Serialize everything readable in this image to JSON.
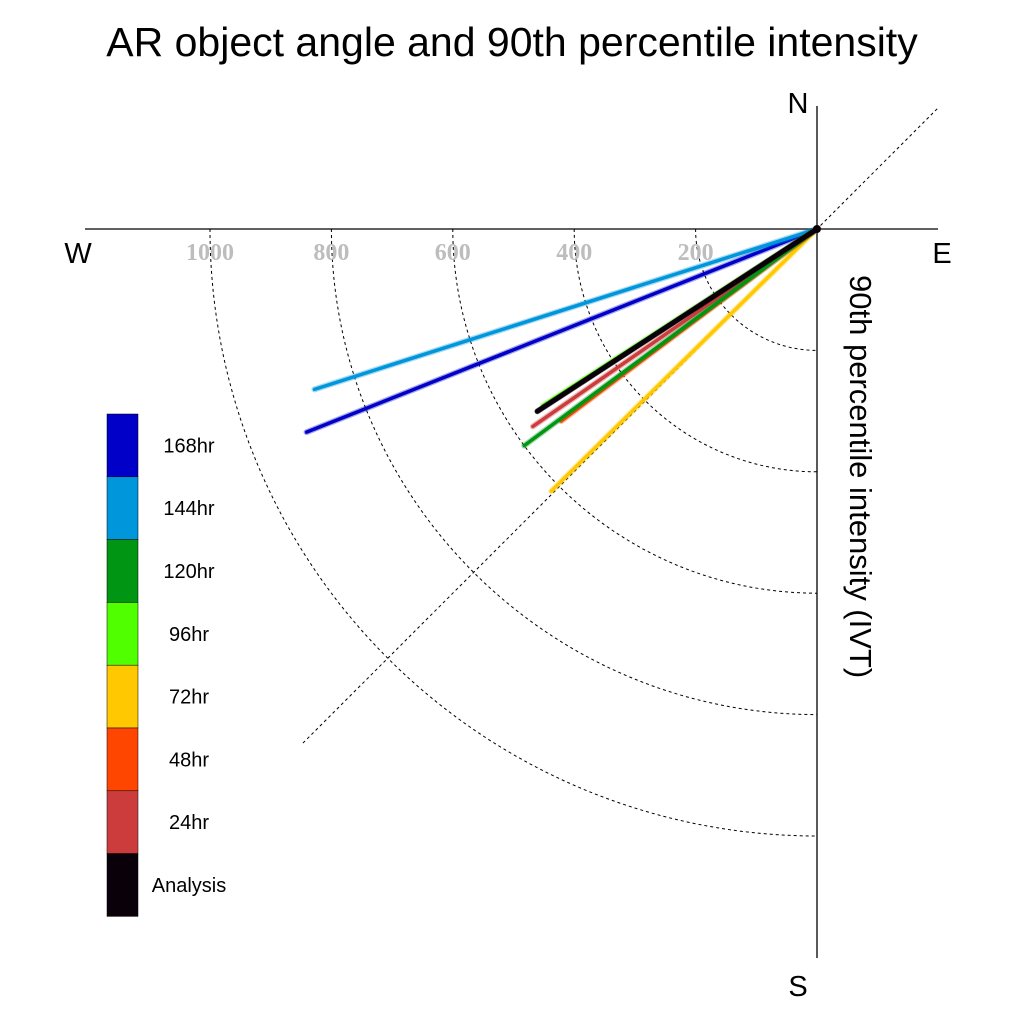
{
  "chart_data": {
    "type": "polar-vector",
    "title": "AR object angle and 90th percentile intensity",
    "compass": {
      "north": "N",
      "south": "S",
      "east": "E",
      "west": "W"
    },
    "radial_label": "90th percentile intensity (IVT)",
    "radial_ticks": [
      200,
      400,
      600,
      800,
      1000
    ],
    "radial_tick_labels": [
      "200",
      "400",
      "600",
      "800",
      "1000"
    ],
    "rmax": 1200,
    "series": [
      {
        "name": "168hr",
        "color": "#0000c8",
        "magnitude": 905,
        "angle_deg_below_west": 21.7
      },
      {
        "name": "144hr",
        "color": "#0096dc",
        "magnitude": 869,
        "angle_deg_below_west": 17.7
      },
      {
        "name": "120hr",
        "color": "#009614",
        "magnitude": 600,
        "angle_deg_below_west": 36.5
      },
      {
        "name": "96hr",
        "color": "#50ff00",
        "magnitude": 537,
        "angle_deg_below_west": 32.8
      },
      {
        "name": "72hr",
        "color": "#ffc800",
        "magnitude": 615,
        "angle_deg_below_west": 44.6
      },
      {
        "name": "48hr",
        "color": "#ff4600",
        "magnitude": 527,
        "angle_deg_below_west": 36.9
      },
      {
        "name": "24hr",
        "color": "#cd3c3c",
        "magnitude": 570,
        "angle_deg_below_west": 34.8
      },
      {
        "name": "Analysis",
        "color": "#0a000a",
        "magnitude": 550,
        "angle_deg_below_west": 33.1
      }
    ],
    "legend": {
      "placement": "left",
      "items": [
        {
          "label": "168hr",
          "color": "#0000c8"
        },
        {
          "label": "144hr",
          "color": "#0096dc"
        },
        {
          "label": "120hr",
          "color": "#009614"
        },
        {
          "label": "96hr",
          "color": "#50ff00"
        },
        {
          "label": "72hr",
          "color": "#ffc800"
        },
        {
          "label": "48hr",
          "color": "#ff4600"
        },
        {
          "label": "24hr",
          "color": "#cd3c3c"
        },
        {
          "label": "Analysis",
          "color": "#0a000a"
        }
      ]
    }
  }
}
